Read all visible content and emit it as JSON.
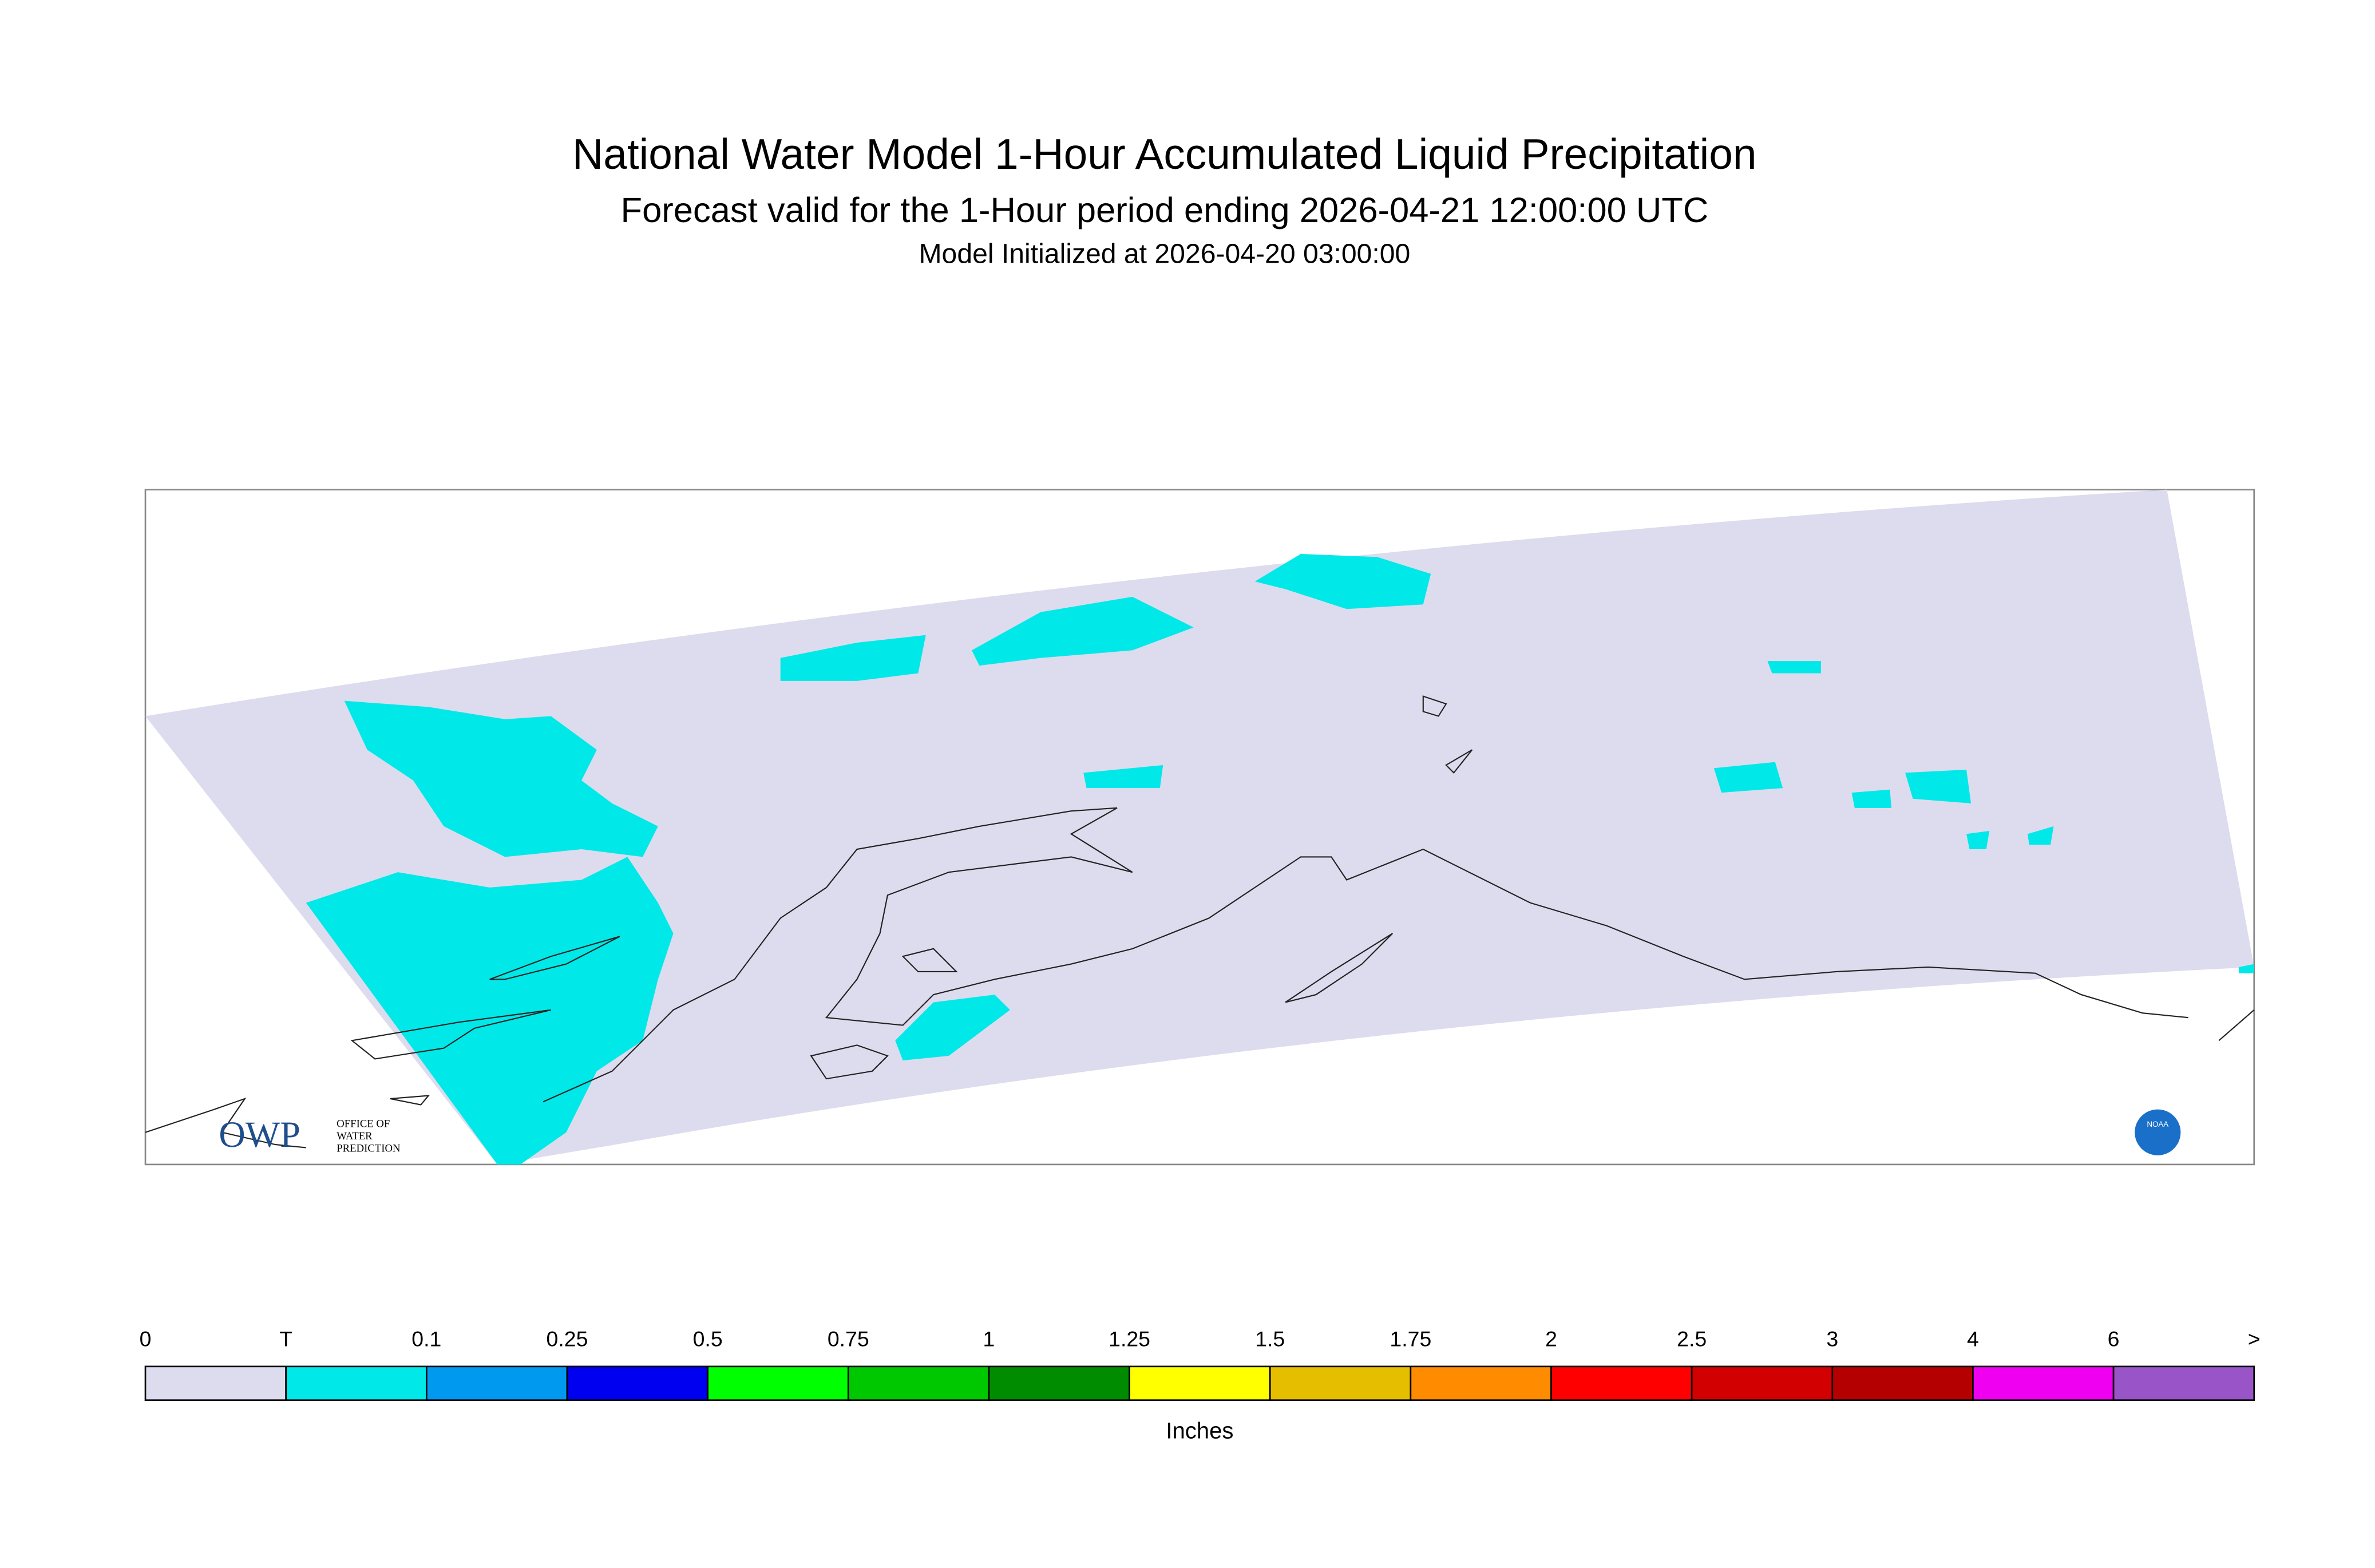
{
  "header": {
    "title": "National Water Model 1-Hour Accumulated Liquid Precipitation",
    "subtitle": "Forecast valid for the 1-Hour period ending 2026-04-21 12:00:00 UTC",
    "initialized": "Model Initialized at 2026-04-20 03:00:00"
  },
  "logos": {
    "owp": "OWP",
    "owp_text": [
      "OFFICE OF",
      "WATER",
      "PREDICTION"
    ],
    "noaa": "NOAA"
  },
  "legend": {
    "labels": [
      "0",
      "T",
      "0.1",
      "0.25",
      "0.5",
      "0.75",
      "1",
      "1.25",
      "1.5",
      "1.75",
      "2",
      "2.5",
      "3",
      "4",
      "6",
      ">"
    ],
    "colors": [
      "#dcdcee",
      "#00e8e8",
      "#0099f0",
      "#0000f0",
      "#00ff00",
      "#00c800",
      "#008c00",
      "#ffff00",
      "#e6be00",
      "#ff8c00",
      "#ff0000",
      "#d20000",
      "#b40000",
      "#f000f0",
      "#9955c8"
    ],
    "unit": "Inches"
  }
}
